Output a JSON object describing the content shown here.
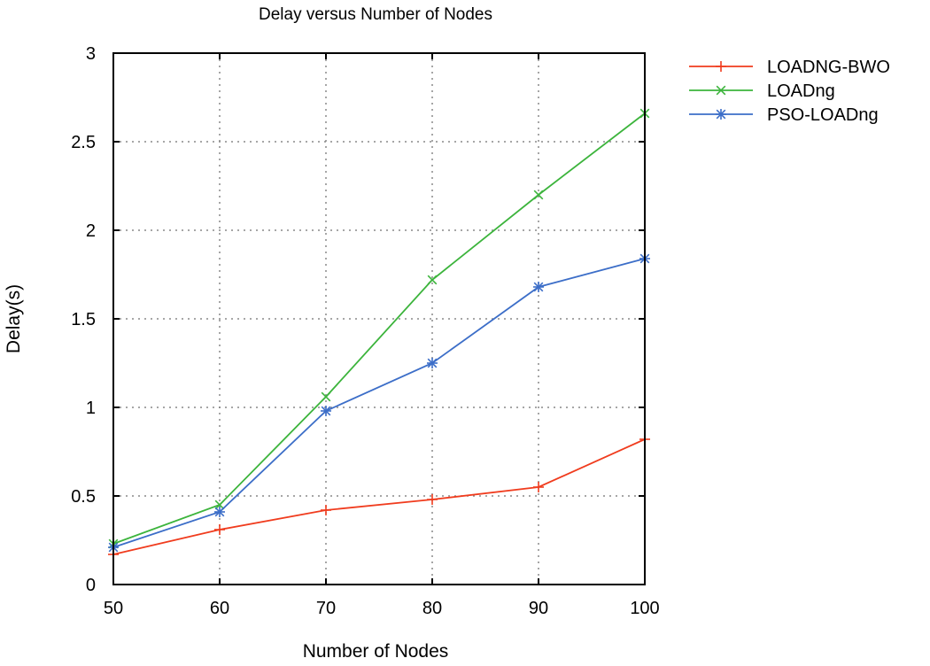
{
  "chart_data": {
    "type": "line",
    "title": "Delay versus Number of Nodes",
    "xlabel": "Number of Nodes",
    "ylabel": "Delay(s)",
    "xlim": [
      50,
      100
    ],
    "ylim": [
      0,
      3
    ],
    "xticks": [
      50,
      60,
      70,
      80,
      90,
      100
    ],
    "yticks": [
      0,
      0.5,
      1,
      1.5,
      2,
      2.5,
      3
    ],
    "grid": true,
    "legend_position": "outside-top-right",
    "x": [
      50,
      60,
      70,
      80,
      90,
      100
    ],
    "series": [
      {
        "name": "LOADNG-BWO",
        "color": "#f03c1e",
        "marker": "plus",
        "values": [
          0.17,
          0.31,
          0.42,
          0.48,
          0.55,
          0.82
        ]
      },
      {
        "name": "LOADng",
        "color": "#3cb43c",
        "marker": "cross",
        "values": [
          0.23,
          0.45,
          1.06,
          1.72,
          2.2,
          2.66
        ]
      },
      {
        "name": "PSO-LOADng",
        "color": "#3c6ec8",
        "marker": "star",
        "values": [
          0.21,
          0.41,
          0.98,
          1.25,
          1.68,
          1.84
        ]
      }
    ]
  }
}
